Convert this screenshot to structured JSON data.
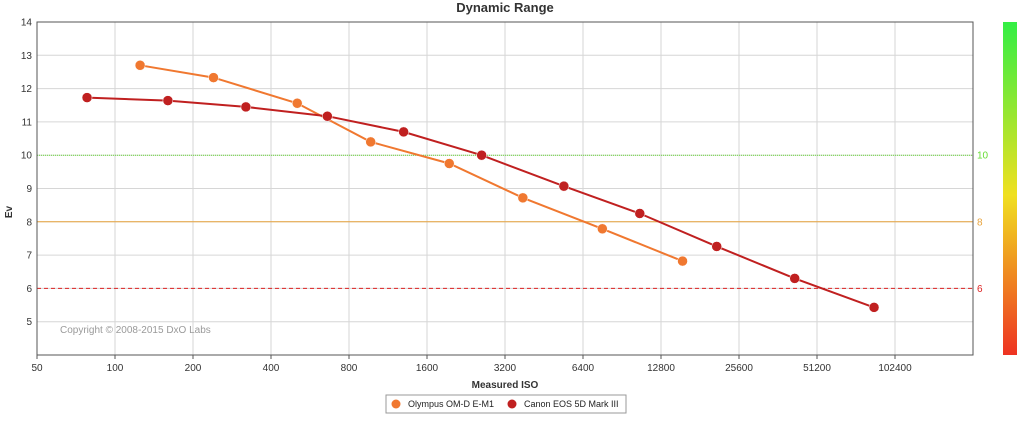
{
  "chart_data": {
    "type": "line",
    "title": "Dynamic Range",
    "xlabel": "Measured ISO",
    "ylabel": "Ev",
    "x_scale": "log2",
    "x_ticks": [
      50,
      100,
      200,
      400,
      800,
      1600,
      3200,
      6400,
      12800,
      25600,
      51200,
      102400
    ],
    "x_tick_labels": [
      "50",
      "100",
      "200",
      "400",
      "800",
      "1600",
      "3200",
      "6400",
      "12800",
      "25600",
      "51200",
      "102400"
    ],
    "xlim": [
      50,
      204800
    ],
    "y_ticks": [
      5,
      6,
      7,
      8,
      9,
      10,
      11,
      12,
      13,
      14
    ],
    "y_tick_labels": [
      "5",
      "6",
      "7",
      "8",
      "9",
      "10",
      "11",
      "12",
      "13",
      "14"
    ],
    "ylim": [
      4,
      14
    ],
    "grid": true,
    "legend_position": "bottom-center",
    "reference_lines": [
      {
        "value": 10,
        "label": "10",
        "color": "#66dd33",
        "style": "dotted"
      },
      {
        "value": 8,
        "label": "8",
        "color": "#e8a33c",
        "style": "solid"
      },
      {
        "value": 6,
        "label": "6",
        "color": "#dd2222",
        "style": "dashed"
      }
    ],
    "color_scale": {
      "top_color": "#33ee44",
      "mid_color": "#f0e020",
      "bottom_color": "#ee3322"
    },
    "copyright": "Copyright © 2008-2015 DxO Labs",
    "series": [
      {
        "name": "Olympus OM-D E-M1",
        "color": "#f07830",
        "points": [
          {
            "x": 125,
            "y": 12.7
          },
          {
            "x": 240,
            "y": 12.33
          },
          {
            "x": 505,
            "y": 11.56
          },
          {
            "x": 970,
            "y": 10.4
          },
          {
            "x": 1950,
            "y": 9.75
          },
          {
            "x": 3750,
            "y": 8.72
          },
          {
            "x": 7600,
            "y": 7.79
          },
          {
            "x": 15500,
            "y": 6.82
          }
        ]
      },
      {
        "name": "Canon EOS 5D Mark III",
        "color": "#c02020",
        "points": [
          {
            "x": 78,
            "y": 11.73
          },
          {
            "x": 160,
            "y": 11.64
          },
          {
            "x": 320,
            "y": 11.45
          },
          {
            "x": 660,
            "y": 11.17
          },
          {
            "x": 1300,
            "y": 10.7
          },
          {
            "x": 2600,
            "y": 10.0
          },
          {
            "x": 5400,
            "y": 9.07
          },
          {
            "x": 10600,
            "y": 8.25
          },
          {
            "x": 21000,
            "y": 7.26
          },
          {
            "x": 42000,
            "y": 6.3
          },
          {
            "x": 85000,
            "y": 5.43
          }
        ]
      }
    ]
  }
}
